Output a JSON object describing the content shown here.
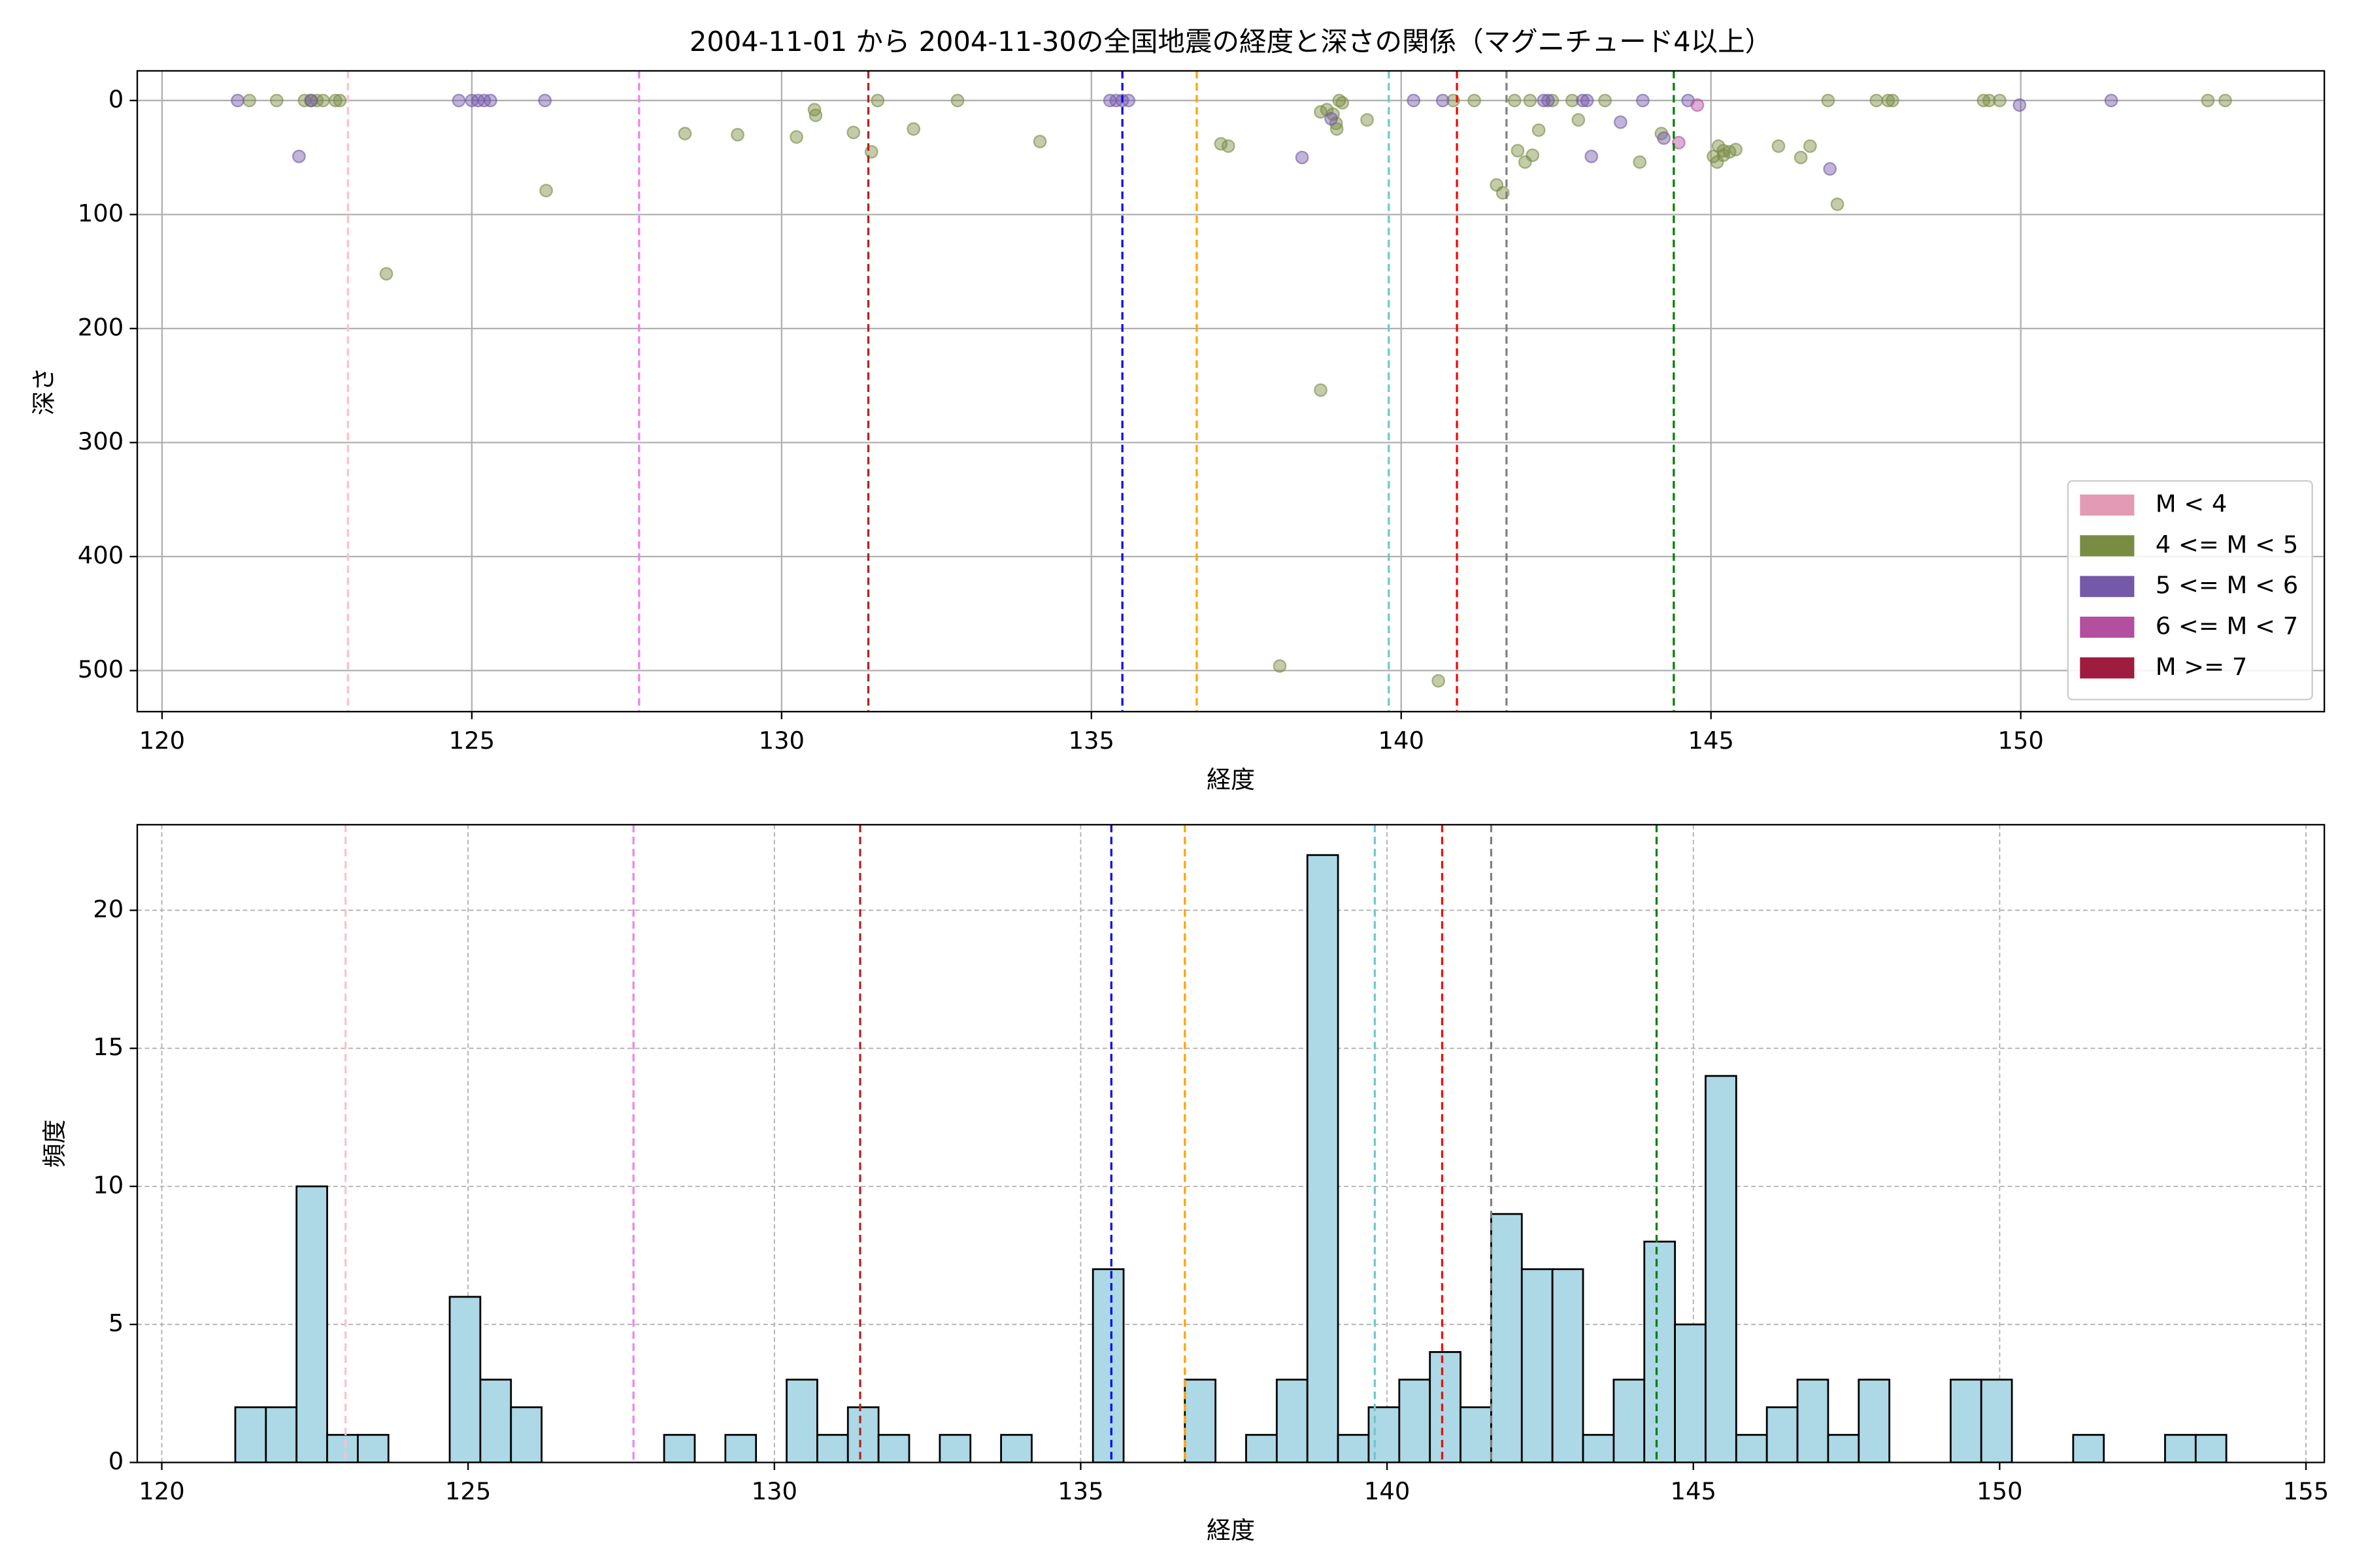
{
  "chart_data": [
    {
      "type": "scatter",
      "title": "2004-11-01 から 2004-11-30の全国地震の経度と深さの関係（マグニチュード4以上）",
      "xlabel": "経度",
      "ylabel": "深さ",
      "xlim": [
        119.6,
        154.9
      ],
      "xticks": [
        120,
        125,
        130,
        135,
        140,
        145,
        150
      ],
      "ylim": [
        536,
        -26
      ],
      "yticks": [
        0,
        100,
        200,
        300,
        400,
        500
      ],
      "grid": true,
      "legend": "lower right",
      "series": [
        {
          "name": "M < 4",
          "color": "#e29ab5",
          "x": [],
          "values": []
        },
        {
          "name": "4 <= M < 5",
          "color": "#7a8c42",
          "x": [
            121.41,
            121.85,
            122.3,
            122.4,
            122.5,
            122.6,
            122.8,
            122.87,
            123.62,
            126.2,
            128.44,
            129.29,
            130.24,
            130.53,
            130.55,
            131.16,
            131.45,
            131.55,
            132.13,
            132.84,
            134.17,
            137.09,
            137.21,
            138.7,
            138.8,
            138.9,
            139.0,
            139.05,
            138.95,
            138.96,
            138.7,
            138.04,
            139.45,
            140.6,
            140.84,
            141.18,
            141.54,
            141.64,
            141.88,
            142.0,
            142.12,
            141.83,
            142.08,
            142.44,
            142.76,
            143.29,
            142.22,
            142.86,
            143.85,
            144.2,
            145.04,
            145.12,
            145.2,
            145.3,
            145.4,
            145.1,
            145.2,
            146.09,
            146.45,
            146.6,
            147.04,
            146.89,
            147.67,
            147.86,
            147.93,
            149.4,
            149.49,
            149.66,
            153.02,
            153.3
          ],
          "values": [
            0,
            0,
            0,
            0,
            0,
            0,
            0,
            0,
            152,
            79,
            29,
            30,
            32,
            8,
            13,
            28,
            45,
            0,
            25,
            0,
            36,
            38,
            40,
            10,
            8,
            12,
            0,
            2,
            20,
            25,
            254,
            496,
            17,
            509,
            0,
            0,
            74,
            81,
            44,
            54,
            48,
            0,
            0,
            0,
            0,
            0,
            26,
            17,
            54,
            29,
            49,
            40,
            44,
            45,
            43,
            54,
            48,
            40,
            50,
            40,
            91,
            0,
            0,
            0,
            0,
            0,
            0,
            0,
            0,
            0
          ]
        },
        {
          "name": "5 <= M < 6",
          "color": "#7359a8",
          "x": [
            121.22,
            122.21,
            122.41,
            124.79,
            125.0,
            125.1,
            125.2,
            125.3,
            126.18,
            135.3,
            135.4,
            135.5,
            135.6,
            138.4,
            138.87,
            140.2,
            140.67,
            142.3,
            142.37,
            142.93,
            143.0,
            143.07,
            143.54,
            143.9,
            144.24,
            144.63,
            146.92,
            149.98,
            151.46
          ],
          "values": [
            0,
            49,
            0,
            0,
            0,
            0,
            0,
            0,
            0,
            0,
            0,
            0,
            0,
            50,
            16,
            0,
            0,
            0,
            0,
            0,
            0,
            49,
            19,
            0,
            33,
            0,
            60,
            4,
            0
          ]
        },
        {
          "name": "6 <= M < 7",
          "color": "#b44e9e",
          "x": [
            144.78,
            144.48
          ],
          "values": [
            4,
            37
          ]
        },
        {
          "name": "M >= 7",
          "color": "#a01c3e",
          "x": [],
          "values": []
        }
      ],
      "vlines": [
        {
          "x": 123.0,
          "color": "pink"
        },
        {
          "x": 127.7,
          "color": "violet"
        },
        {
          "x": 131.4,
          "color": "#b22222"
        },
        {
          "x": 135.5,
          "color": "blue"
        },
        {
          "x": 136.7,
          "color": "orange"
        },
        {
          "x": 139.8,
          "color": "#6fc8d0"
        },
        {
          "x": 140.9,
          "color": "red"
        },
        {
          "x": 141.7,
          "color": "gray"
        },
        {
          "x": 144.4,
          "color": "green"
        }
      ]
    },
    {
      "type": "histogram",
      "xlabel": "経度",
      "ylabel": "頻度",
      "xlim": [
        119.6,
        155.3
      ],
      "xticks": [
        120,
        125,
        130,
        135,
        140,
        145,
        150,
        155
      ],
      "ylim": [
        0,
        23.1
      ],
      "yticks": [
        0,
        5,
        10,
        15,
        20
      ],
      "grid": true,
      "color": "#add8e6",
      "bins": [
        121.2,
        121.7,
        122.2,
        122.7,
        123.2,
        123.7,
        124.2,
        124.7,
        125.2,
        125.7,
        126.2,
        126.7,
        127.2,
        127.7,
        128.2,
        128.7,
        129.2,
        129.7,
        130.2,
        130.7,
        131.2,
        131.7,
        132.2,
        132.7,
        133.2,
        133.7,
        134.2,
        134.7,
        135.2,
        135.7,
        136.2,
        136.7,
        137.2,
        137.7,
        138.2,
        138.7,
        139.2,
        139.7,
        140.2,
        140.7,
        141.2,
        141.7,
        142.2,
        142.7,
        143.2,
        143.7,
        144.2,
        144.7,
        145.2,
        145.7,
        146.2,
        146.7,
        147.2,
        147.7,
        148.2,
        148.7,
        149.2,
        149.7,
        150.2,
        150.7,
        151.2,
        151.7,
        152.2,
        152.7,
        153.2,
        153.7
      ],
      "values": [
        2,
        2,
        10,
        1,
        1,
        0,
        0,
        6,
        3,
        2,
        0,
        0,
        0,
        0,
        1,
        0,
        1,
        0,
        3,
        1,
        2,
        1,
        0,
        1,
        0,
        1,
        0,
        0,
        7,
        0,
        0,
        3,
        0,
        1,
        3,
        22,
        1,
        2,
        3,
        4,
        2,
        9,
        7,
        7,
        1,
        3,
        8,
        5,
        14,
        1,
        2,
        3,
        1,
        3,
        0,
        0,
        3,
        3,
        0,
        0,
        1,
        0,
        0,
        1,
        1
      ],
      "vlines": [
        {
          "x": 123.0,
          "color": "pink"
        },
        {
          "x": 127.7,
          "color": "violet"
        },
        {
          "x": 131.4,
          "color": "#b22222"
        },
        {
          "x": 135.5,
          "color": "blue"
        },
        {
          "x": 136.7,
          "color": "orange"
        },
        {
          "x": 139.8,
          "color": "#6fc8d0"
        },
        {
          "x": 140.9,
          "color": "red"
        },
        {
          "x": 141.7,
          "color": "gray"
        },
        {
          "x": 144.4,
          "color": "green"
        }
      ]
    }
  ]
}
